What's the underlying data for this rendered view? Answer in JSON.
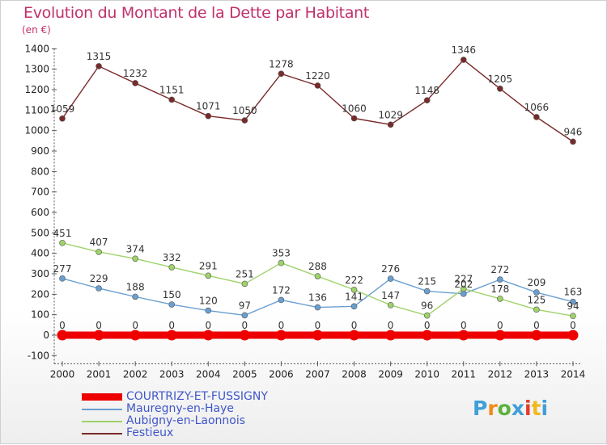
{
  "title": "Evolution du Montant de la Dette par Habitant",
  "subtitle": "(en €)",
  "logo": {
    "text": "Proxiti",
    "colors": [
      "#3f9fd9",
      "#f28a1a",
      "#5ab33c",
      "#3f9fd9",
      "#e23b2e",
      "#f2b81a",
      "#3f9fd9"
    ]
  },
  "chart_data": {
    "type": "line",
    "x": [
      "2000",
      "2001",
      "2002",
      "2003",
      "2004",
      "2005",
      "2006",
      "2007",
      "2008",
      "2009",
      "2010",
      "2011",
      "2012",
      "2013",
      "2014"
    ],
    "ylim": [
      -100,
      1400
    ],
    "yticks": [
      "-100",
      "0",
      "100",
      "200",
      "300",
      "400",
      "500",
      "600",
      "700",
      "800",
      "900",
      "1000",
      "1100",
      "1200",
      "1300",
      "1400"
    ],
    "grid": false,
    "legend_position": "bottom-left",
    "series": [
      {
        "name": "COURTRIZY-ET-FUSSIGNY",
        "color": "#ee0000",
        "thick": true,
        "values": [
          0,
          0,
          0,
          0,
          0,
          0,
          0,
          0,
          0,
          0,
          0,
          0,
          0,
          0,
          0
        ],
        "labels": [
          "0",
          "0",
          "0",
          "0",
          "0",
          "0",
          "0",
          "0",
          "0",
          "0",
          "0",
          "0",
          "0",
          "0",
          "0"
        ]
      },
      {
        "name": "Mauregny-en-Haye",
        "color": "#6a9fd0",
        "values": [
          277,
          229,
          188,
          150,
          120,
          97,
          172,
          136,
          141,
          276,
          215,
          202,
          272,
          209,
          163
        ],
        "labels": [
          "277",
          "229",
          "188",
          "150",
          "120",
          "97",
          "172",
          "136",
          "141",
          "276",
          "215",
          "202",
          "272",
          "209",
          "163"
        ]
      },
      {
        "name": "Aubigny-en-Laonnois",
        "color": "#9ed36a",
        "values": [
          451,
          407,
          374,
          332,
          291,
          251,
          353,
          288,
          222,
          147,
          96,
          227,
          178,
          125,
          94
        ],
        "labels": [
          "451",
          "407",
          "374",
          "332",
          "291",
          "251",
          "353",
          "288",
          "222",
          "147",
          "96",
          "227",
          "178",
          "125",
          "94"
        ]
      },
      {
        "name": "Festieux",
        "color": "#7a2a2a",
        "values": [
          1059,
          1315,
          1232,
          1151,
          1071,
          1050,
          1278,
          1220,
          1060,
          1029,
          1148,
          1346,
          1205,
          1066,
          946
        ],
        "labels": [
          "1059",
          "1315",
          "1232",
          "1151",
          "1071",
          "1050",
          "1278",
          "1220",
          "1060",
          "1029",
          "1148",
          "1346",
          "1205",
          "1066",
          "946"
        ]
      }
    ]
  }
}
